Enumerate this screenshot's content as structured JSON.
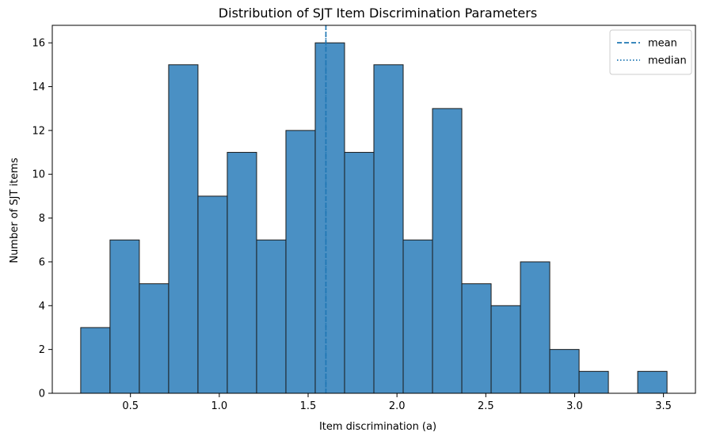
{
  "chart_data": {
    "type": "bar",
    "title": "Distribution of SJT Item Discrimination Parameters",
    "xlabel": "Item discrimination (a)",
    "ylabel": "Number of SJT items",
    "bin_edges": [
      0.22,
      0.385,
      0.55,
      0.715,
      0.88,
      1.045,
      1.21,
      1.375,
      1.54,
      1.705,
      1.87,
      2.035,
      2.2,
      2.365,
      2.53,
      2.695,
      2.86,
      3.025,
      3.19,
      3.355,
      3.52
    ],
    "values": [
      3,
      7,
      5,
      15,
      9,
      11,
      7,
      12,
      16,
      11,
      15,
      7,
      13,
      5,
      4,
      6,
      2,
      1,
      0,
      1
    ],
    "xlim": [
      0.06,
      3.68
    ],
    "ylim": [
      0,
      16.8
    ],
    "xticks": [
      0.5,
      1.0,
      1.5,
      2.0,
      2.5,
      3.0,
      3.5
    ],
    "xtick_labels": [
      "0.5",
      "1.0",
      "1.5",
      "2.0",
      "2.5",
      "3.0",
      "3.5"
    ],
    "yticks": [
      0,
      2,
      4,
      6,
      8,
      10,
      12,
      14,
      16
    ],
    "ytick_labels": [
      "0",
      "2",
      "4",
      "6",
      "8",
      "10",
      "12",
      "14",
      "16"
    ],
    "mean": 1.6,
    "median": 1.6,
    "legend": {
      "placement": "top-right",
      "entries": [
        {
          "label": "mean",
          "style": "dashed"
        },
        {
          "label": "median",
          "style": "dotted"
        }
      ]
    },
    "colors": {
      "bar_fill": "#4a90c4",
      "bar_edge": "#1a1a1a",
      "line": "#1f77b4"
    },
    "grid": false
  }
}
